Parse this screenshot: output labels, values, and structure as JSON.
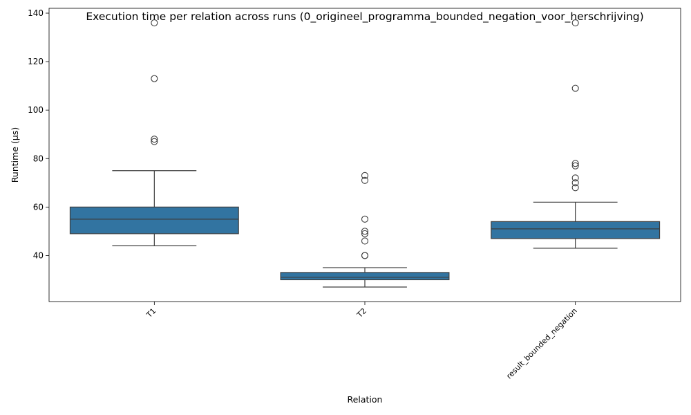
{
  "chart_data": {
    "type": "box",
    "title": "Execution time per relation across runs (0_origineel_programma_bounded_negation_voor_herschrijving)",
    "xlabel": "Relation",
    "ylabel": "Runtime (µs)",
    "ylim": [
      21,
      142
    ],
    "yticks": [
      40,
      60,
      80,
      100,
      120,
      140
    ],
    "categories": [
      "T1",
      "T2",
      "result_bounded_negation"
    ],
    "boxes": [
      {
        "category": "T1",
        "whisker_low": 44,
        "q1": 49,
        "median": 55,
        "q3": 60,
        "whisker_high": 75,
        "outliers": [
          87,
          88,
          113,
          136
        ]
      },
      {
        "category": "T2",
        "whisker_low": 27,
        "q1": 30,
        "median": 31,
        "q3": 33,
        "whisker_high": 35,
        "outliers": [
          40,
          40,
          46,
          49,
          50,
          55,
          71,
          73
        ]
      },
      {
        "category": "result_bounded_negation",
        "whisker_low": 43,
        "q1": 47,
        "median": 51,
        "q3": 54,
        "whisker_high": 62,
        "outliers": [
          68,
          70,
          72,
          77,
          78,
          109,
          136
        ]
      }
    ],
    "box_color": "#3274a1",
    "line_color": "#3d3d3d",
    "grid": false,
    "legend": "none"
  }
}
